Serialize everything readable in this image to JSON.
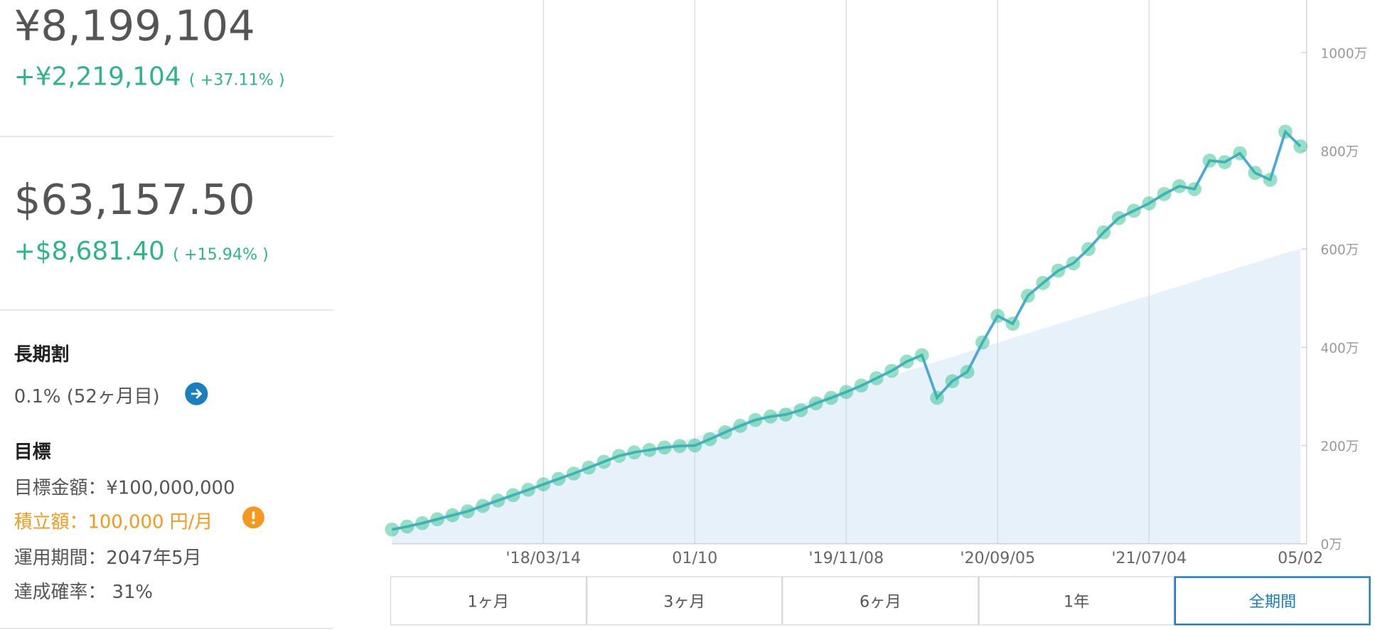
{
  "summary": {
    "jpy": {
      "total": "¥8,199,104",
      "change": "+¥2,219,104",
      "change_pct": "( +37.11% )"
    },
    "usd": {
      "total": "$63,157.50",
      "change": "+$8,681.40",
      "change_pct": "( +15.94% )"
    },
    "long_term": {
      "title": "長期割",
      "text": "0.1% (52ヶ月目)"
    },
    "goal": {
      "title": "目標",
      "items": [
        "目標金額：¥100,000,000",
        "積立額：100,000 円/月",
        "運用期間：2047年5月",
        "達成確率： 31%"
      ]
    }
  },
  "tabs": {
    "items": [
      "1ヶ月",
      "3ヶ月",
      "6ヶ月",
      "1年",
      "全期間"
    ],
    "active": 4
  },
  "chart_data": {
    "type": "line",
    "categories": [
      null,
      null,
      null,
      null,
      null,
      null,
      null,
      null,
      null,
      null,
      "'18/03/14",
      null,
      null,
      null,
      null,
      null,
      null,
      null,
      null,
      null,
      "01/10",
      null,
      null,
      null,
      null,
      null,
      null,
      null,
      null,
      null,
      "'19/11/08",
      null,
      null,
      null,
      null,
      null,
      null,
      null,
      null,
      null,
      "'20/09/05",
      null,
      null,
      null,
      null,
      null,
      null,
      null,
      null,
      null,
      "'21/07/04",
      null,
      null,
      null,
      null,
      null,
      null,
      null,
      null,
      null,
      "05/02"
    ],
    "series": [
      {
        "color": "#2fbf8f",
        "values": [
          29,
          35,
          42,
          50,
          58,
          66,
          77,
          88,
          99,
          110,
          121,
          132,
          143,
          155,
          167,
          179,
          186,
          191,
          196,
          199,
          200,
          213,
          227,
          240,
          252,
          259,
          263,
          272,
          286,
          297,
          309,
          322,
          337,
          352,
          371,
          384,
          297,
          331,
          350,
          410,
          464,
          448,
          505,
          531,
          556,
          571,
          600,
          634,
          663,
          678,
          693,
          712,
          728,
          722,
          780,
          777,
          795,
          755,
          741,
          839,
          809
        ]
      },
      {
        "color": "#e6f1f9",
        "values": [
          25,
          35,
          44,
          54,
          64,
          73,
          83,
          92,
          102,
          112,
          121,
          131,
          140,
          150,
          160,
          169,
          179,
          188,
          198,
          208,
          217,
          227,
          236,
          246,
          256,
          265,
          275,
          284,
          294,
          304,
          313,
          323,
          332,
          342,
          352,
          361,
          371,
          380,
          390,
          400,
          409,
          419,
          428,
          438,
          448,
          457,
          467,
          476,
          486,
          496,
          505,
          515,
          524,
          534,
          544,
          553,
          563,
          572,
          582,
          592,
          600
        ]
      }
    ],
    "ylim": [
      0,
      1107
    ],
    "yticks": [
      {
        "value": 0,
        "label": "0万"
      },
      {
        "value": 200,
        "label": "200万"
      },
      {
        "value": 400,
        "label": "400万"
      },
      {
        "value": 600,
        "label": "600万"
      },
      {
        "value": 800,
        "label": "800万"
      },
      {
        "value": 1000,
        "label": "1000万"
      }
    ],
    "grid": true
  }
}
